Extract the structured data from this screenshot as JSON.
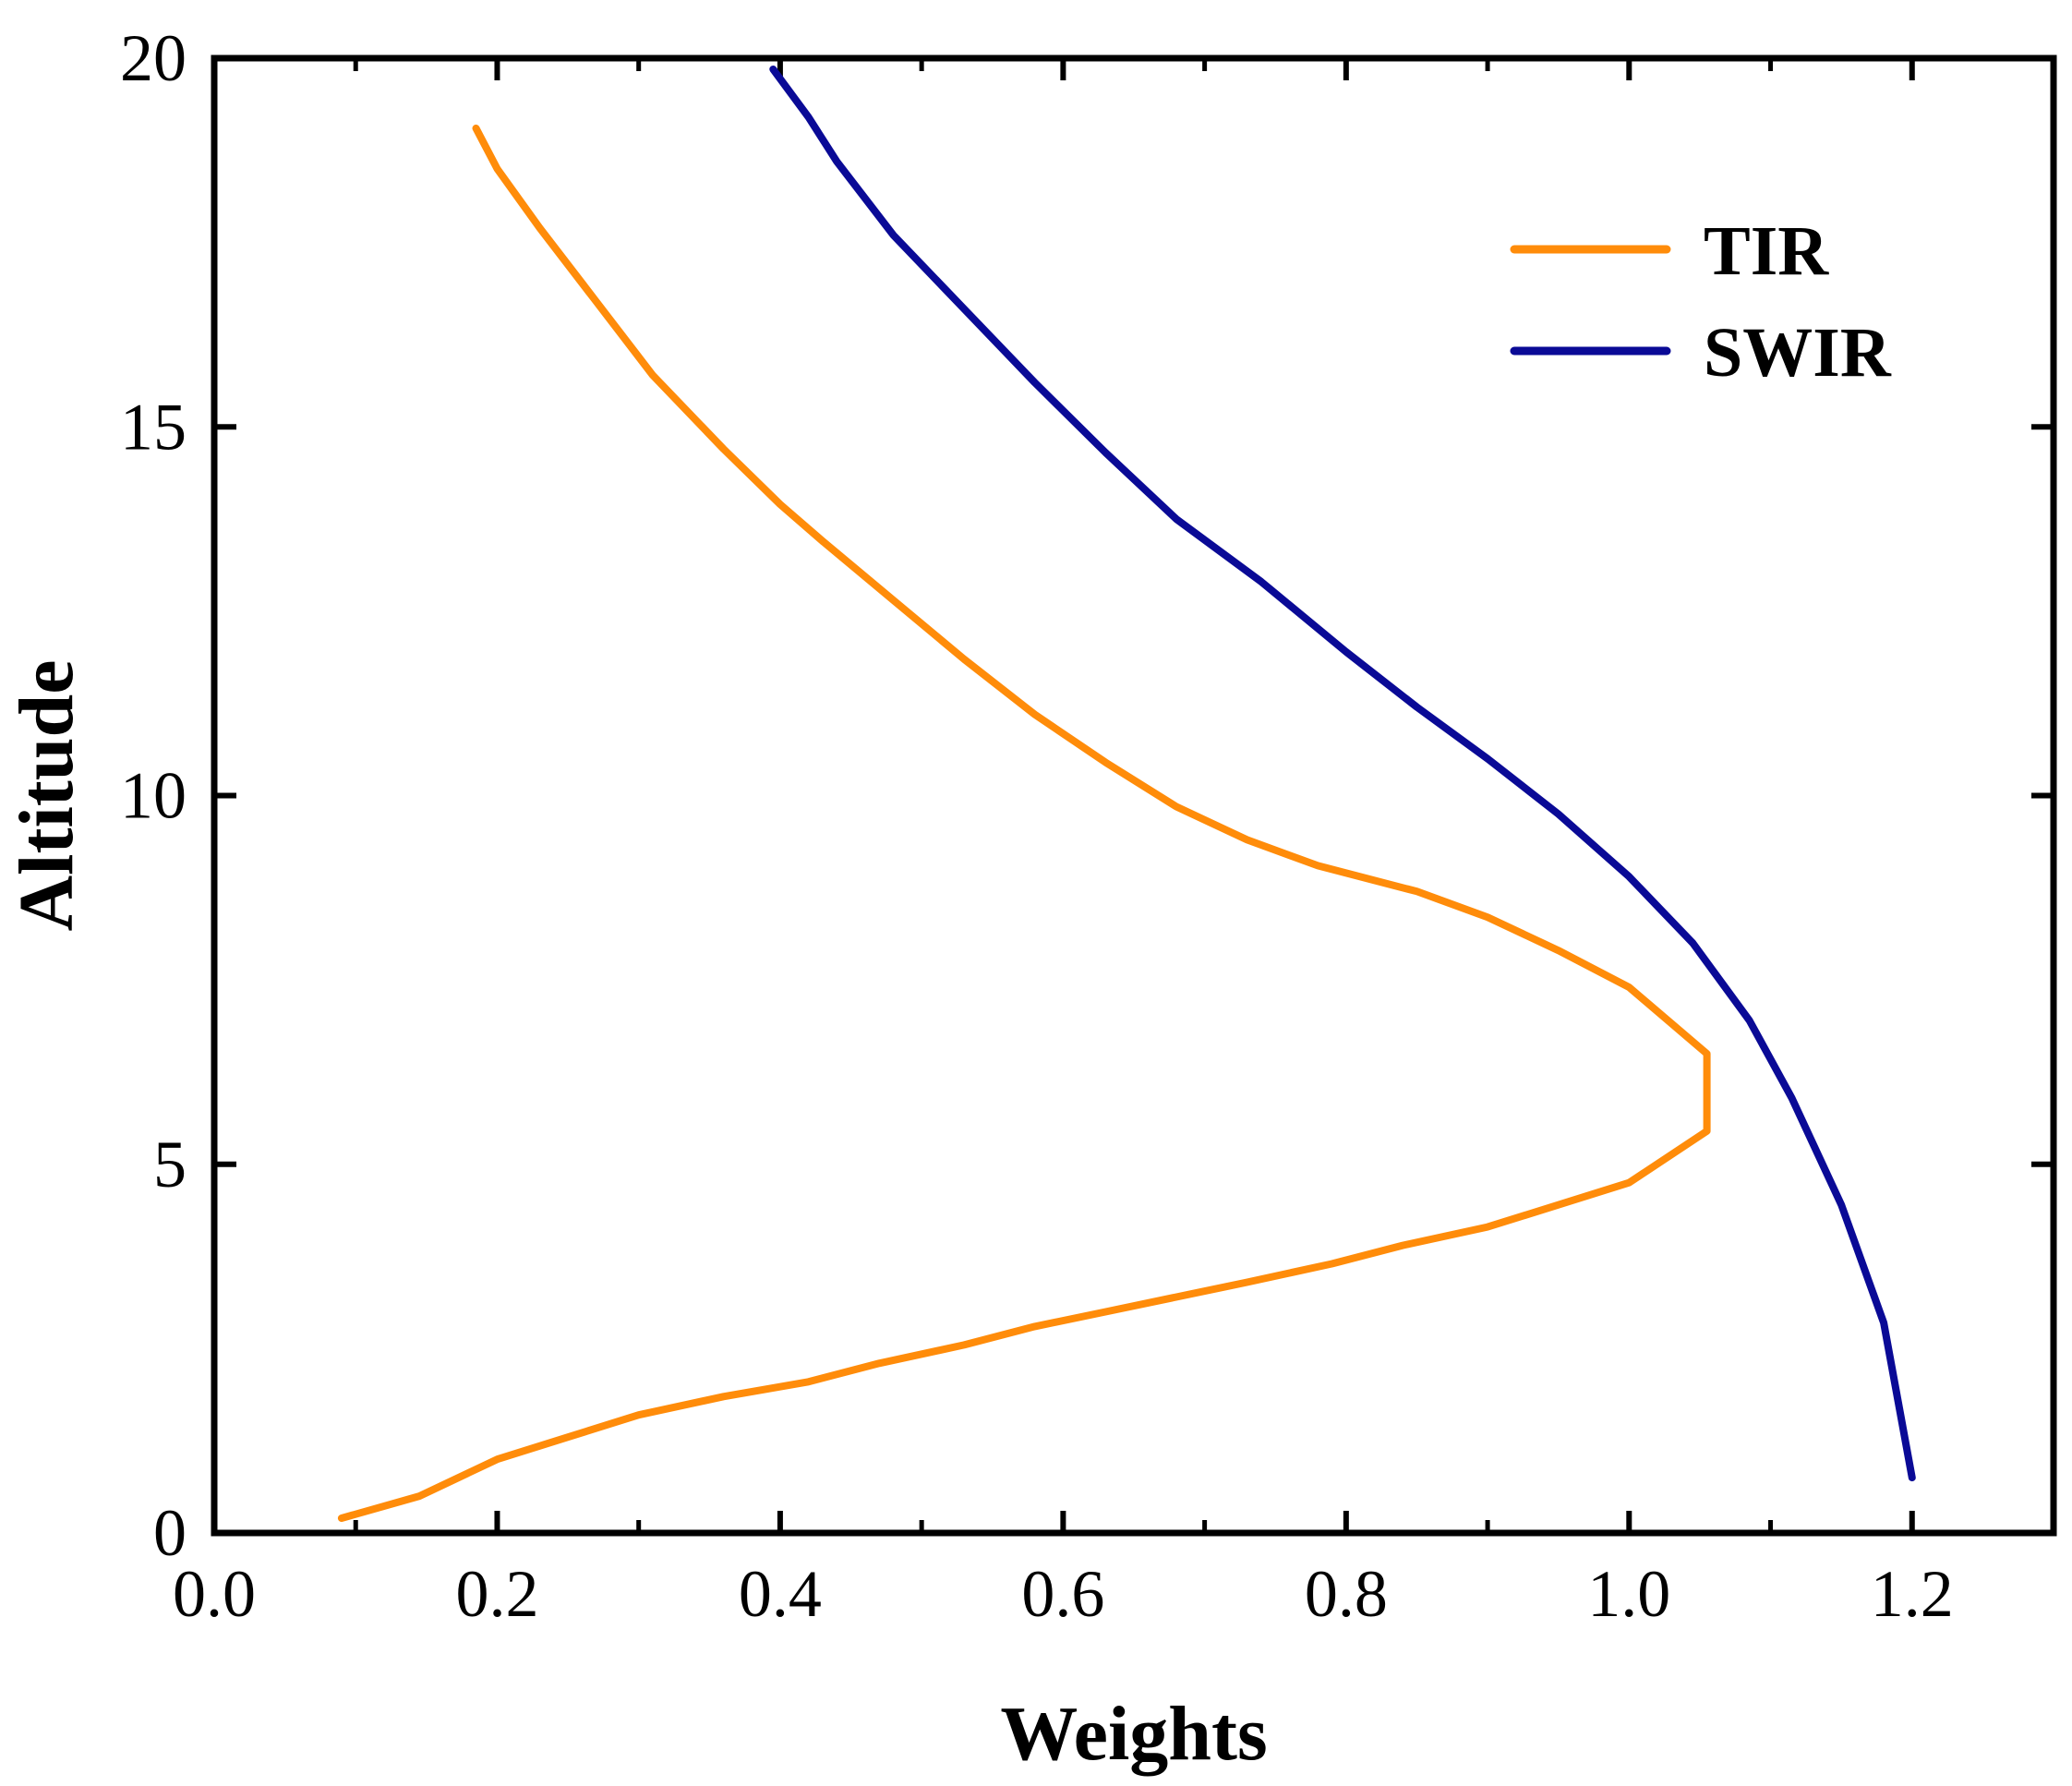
{
  "chart_data": {
    "type": "line",
    "title": "",
    "xlabel": "Weights",
    "ylabel": "Altitude",
    "xlim": [
      0.0,
      1.3
    ],
    "ylim": [
      0,
      20
    ],
    "xticks": [
      "0.0",
      "0.2",
      "0.4",
      "0.6",
      "0.8",
      "1.0",
      "1.2"
    ],
    "yticks": [
      "0",
      "5",
      "10",
      "15",
      "20"
    ],
    "grid": false,
    "legend_position": "top-right",
    "series": [
      {
        "name": "TIR",
        "color": "#FF8C0A",
        "x": [
          0.09,
          0.145,
          0.2,
          0.25,
          0.3,
          0.36,
          0.42,
          0.47,
          0.53,
          0.58,
          0.63,
          0.68,
          0.73,
          0.79,
          0.84,
          0.9,
          0.95,
          1.0,
          1.055,
          1.055,
          1.0,
          0.95,
          0.9,
          0.85,
          0.78,
          0.73,
          0.68,
          0.63,
          0.58,
          0.53,
          0.48,
          0.43,
          0.4,
          0.36,
          0.31,
          0.27,
          0.23,
          0.2,
          0.185
        ],
        "y": [
          0.2,
          0.5,
          1.0,
          1.3,
          1.6,
          1.85,
          2.05,
          2.3,
          2.55,
          2.8,
          3.0,
          3.2,
          3.4,
          3.65,
          3.9,
          4.15,
          4.45,
          4.75,
          5.45,
          6.5,
          7.4,
          7.9,
          8.35,
          8.7,
          9.05,
          9.4,
          9.85,
          10.45,
          11.1,
          11.85,
          12.65,
          13.45,
          13.95,
          14.7,
          15.7,
          16.7,
          17.7,
          18.5,
          19.05
        ]
      },
      {
        "name": "SWIR",
        "color": "#0A0A96",
        "x": [
          1.2,
          1.18,
          1.15,
          1.115,
          1.085,
          1.045,
          1.0,
          0.95,
          0.9,
          0.85,
          0.8,
          0.74,
          0.68,
          0.63,
          0.58,
          0.53,
          0.48,
          0.44,
          0.42,
          0.395
        ],
        "y": [
          0.75,
          2.85,
          4.45,
          5.9,
          6.95,
          8.0,
          8.9,
          9.75,
          10.5,
          11.2,
          11.95,
          12.9,
          13.75,
          14.65,
          15.6,
          16.6,
          17.6,
          18.6,
          19.2,
          19.85
        ]
      }
    ]
  }
}
